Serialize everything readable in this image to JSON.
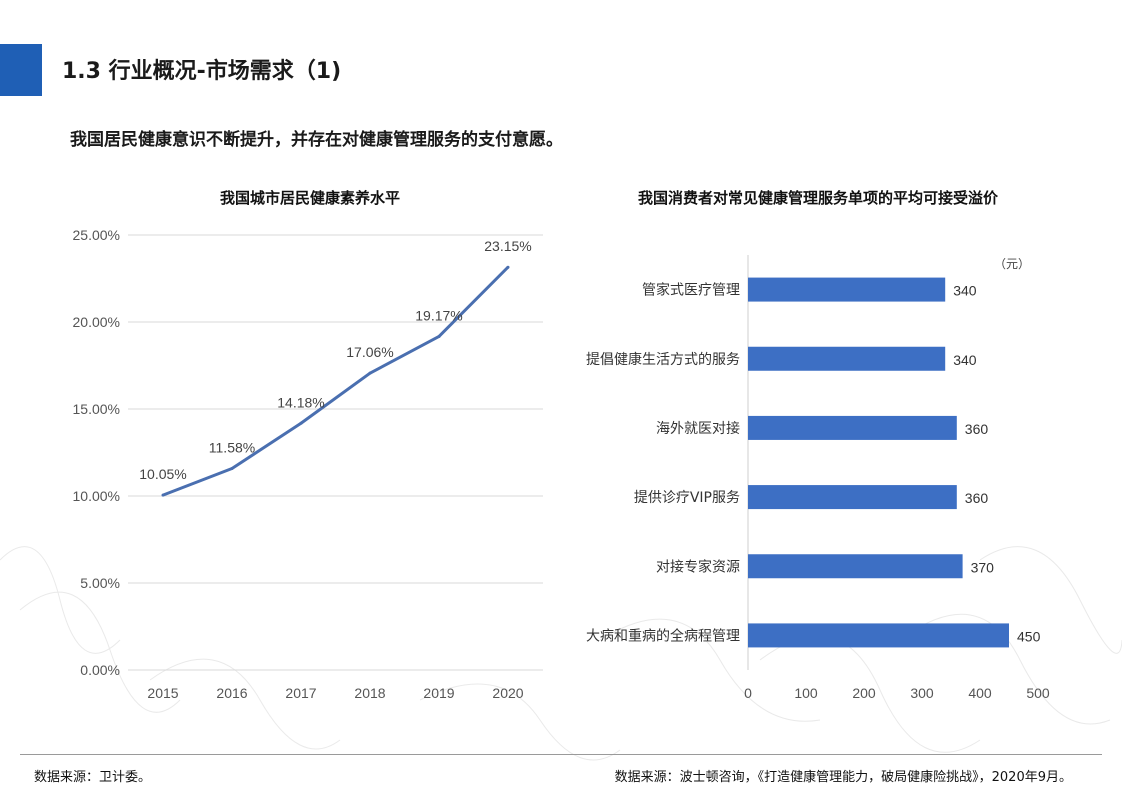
{
  "slide": {
    "title": "1.3 行业概况-市场需求（1)",
    "subtitle": "我国居民健康意识不断提升，并存在对健康管理服务的支付意愿。",
    "accent_color": "#1f5fb5"
  },
  "chart_data": [
    {
      "type": "line",
      "title": "我国城市居民健康素养水平",
      "x": [
        "2015",
        "2016",
        "2017",
        "2018",
        "2019",
        "2020"
      ],
      "series": [
        {
          "values": [
            10.05,
            11.58,
            14.18,
            17.06,
            19.17,
            23.15
          ],
          "color": "#4a6fb0"
        }
      ],
      "data_labels": [
        "10.05%",
        "11.58%",
        "14.18%",
        "17.06%",
        "19.17%",
        "23.15%"
      ],
      "ylim": [
        0,
        25
      ],
      "y_ticks": [
        0,
        5,
        10,
        15,
        20,
        25
      ],
      "y_tick_labels": [
        "0.00%",
        "5.00%",
        "10.00%",
        "15.00%",
        "20.00%",
        "25.00%"
      ],
      "grid": true,
      "legend": "none"
    },
    {
      "type": "bar",
      "orientation": "horizontal",
      "title": "我国消费者对常见健康管理服务单项的平均可接受溢价",
      "unit_label": "（元）",
      "categories": [
        "管家式医疗管理",
        "提倡健康生活方式的服务",
        "海外就医对接",
        "提供诊疗VIP服务",
        "对接专家资源",
        "大病和重病的全病程管理"
      ],
      "values": [
        340,
        340,
        360,
        360,
        370,
        450
      ],
      "xlim": [
        0,
        500
      ],
      "x_ticks": [
        0,
        100,
        200,
        300,
        400,
        500
      ],
      "x_tick_labels": [
        "0",
        "100",
        "200",
        "300",
        "400",
        "500"
      ],
      "bar_color": "#3d6fc4",
      "grid": false,
      "legend": "none"
    }
  ],
  "footer": {
    "source_left": "数据来源：卫计委。",
    "source_right": "数据来源：波士顿咨询，《打造健康管理能力，破局健康险挑战》，2020年9月。"
  }
}
